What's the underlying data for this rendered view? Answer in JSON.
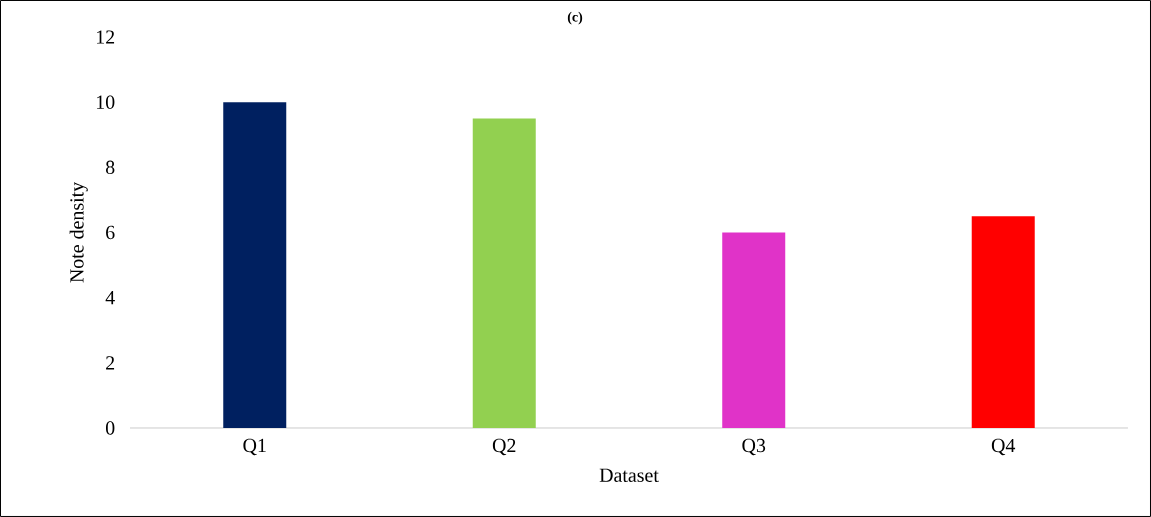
{
  "chart_data": {
    "type": "bar",
    "title": "(c)",
    "xlabel": "Dataset",
    "ylabel": "Note density",
    "categories": [
      "Q1",
      "Q2",
      "Q3",
      "Q4"
    ],
    "values": [
      10,
      9.5,
      6,
      6.5
    ],
    "colors": [
      "#002060",
      "#92d050",
      "#e033c8",
      "#ff0000"
    ],
    "ylim": [
      0,
      12
    ],
    "yticks": [
      0,
      2,
      4,
      6,
      8,
      10,
      12
    ]
  }
}
